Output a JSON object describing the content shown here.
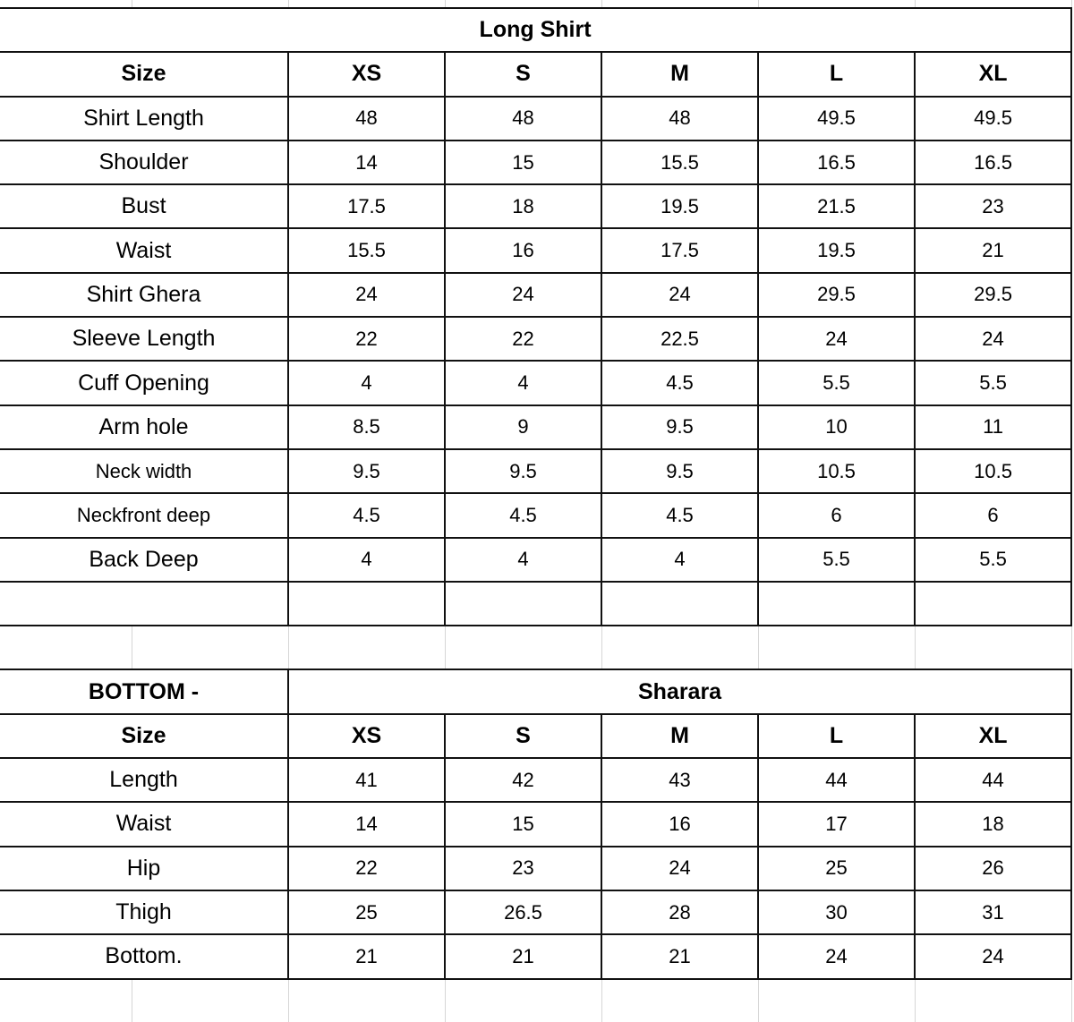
{
  "top": {
    "title": "Long Shirt",
    "header": [
      "Size",
      "XS",
      "S",
      "M",
      "L",
      "XL"
    ],
    "rows": [
      [
        "Shirt Length",
        "48",
        "48",
        "48",
        "49.5",
        "49.5"
      ],
      [
        "Shoulder",
        "14",
        "15",
        "15.5",
        "16.5",
        "16.5"
      ],
      [
        "Bust",
        "17.5",
        "18",
        "19.5",
        "21.5",
        "23"
      ],
      [
        "Waist",
        "15.5",
        "16",
        "17.5",
        "19.5",
        "21"
      ],
      [
        "Shirt Ghera",
        "24",
        "24",
        "24",
        "29.5",
        "29.5"
      ],
      [
        "Sleeve Length",
        "22",
        "22",
        "22.5",
        "24",
        "24"
      ],
      [
        "Cuff Opening",
        "4",
        "4",
        "4.5",
        "5.5",
        "5.5"
      ],
      [
        "Arm hole",
        "8.5",
        "9",
        "9.5",
        "10",
        "11"
      ],
      [
        "Neck width",
        "9.5",
        "9.5",
        "9.5",
        "10.5",
        "10.5"
      ],
      [
        "Neckfront deep",
        "4.5",
        "4.5",
        "4.5",
        "6",
        "6"
      ],
      [
        "Back Deep",
        "4",
        "4",
        "4",
        "5.5",
        "5.5"
      ],
      [
        "",
        "",
        "",
        "",
        "",
        ""
      ]
    ]
  },
  "bottom": {
    "section_label": "BOTTOM -",
    "title": "Sharara",
    "header": [
      "Size",
      "XS",
      "S",
      "M",
      "L",
      "XL"
    ],
    "rows": [
      [
        "Length",
        "41",
        "42",
        "43",
        "44",
        "44"
      ],
      [
        "Waist",
        "14",
        "15",
        "16",
        "17",
        "18"
      ],
      [
        "Hip",
        "22",
        "23",
        "24",
        "25",
        "26"
      ],
      [
        "Thigh",
        "25",
        "26.5",
        "28",
        "30",
        "31"
      ],
      [
        "Bottom.",
        "21",
        "21",
        "21",
        "24",
        "24"
      ]
    ]
  }
}
